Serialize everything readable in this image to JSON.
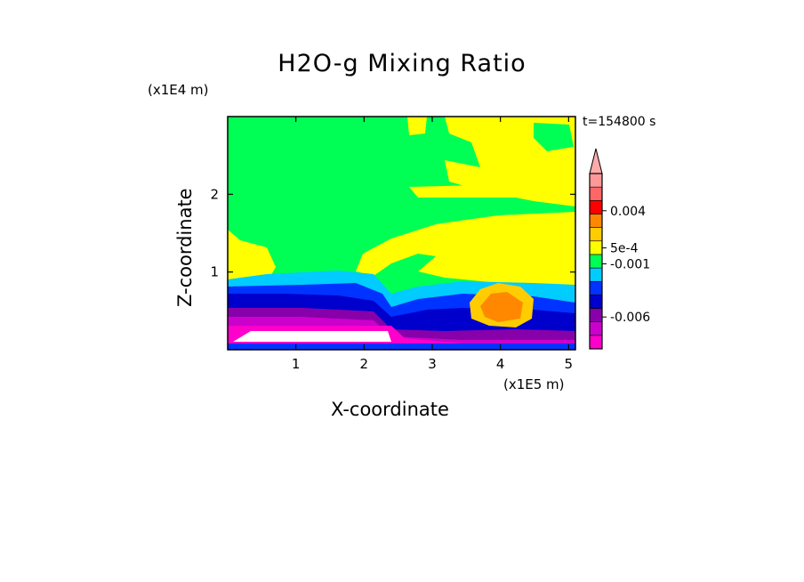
{
  "chart_data": {
    "type": "heatmap",
    "title": "H2O-g Mixing Ratio",
    "xlabel": "X-coordinate",
    "ylabel": "Z-coordinate",
    "x_unit": "(x1E5 m)",
    "y_unit": "(x1E4 m)",
    "time_label": "t=154800 s",
    "xlim": [
      0,
      5.1
    ],
    "ylim": [
      0,
      3.0
    ],
    "x_ticks": [
      "1",
      "2",
      "3",
      "4",
      "5"
    ],
    "x_tick_values": [
      1,
      2,
      3,
      4,
      5
    ],
    "y_ticks": [
      "1",
      "2"
    ],
    "y_tick_values": [
      1,
      2
    ],
    "colorbar": {
      "colors": [
        "#ff00cc",
        "#cc00cc",
        "#8800aa",
        "#0000cc",
        "#0033ff",
        "#00ccff",
        "#00ff55",
        "#ffff00",
        "#ffcc00",
        "#ff8800",
        "#ff0000",
        "#ff6666",
        "#ff9999"
      ],
      "labels": [
        "0.004",
        "5e-4",
        "-0.001",
        "-0.006"
      ],
      "label_values": [
        0.004,
        0.0005,
        -0.001,
        -0.006
      ],
      "vmin": -0.009,
      "vmax": 0.0075,
      "extend": "max"
    }
  }
}
